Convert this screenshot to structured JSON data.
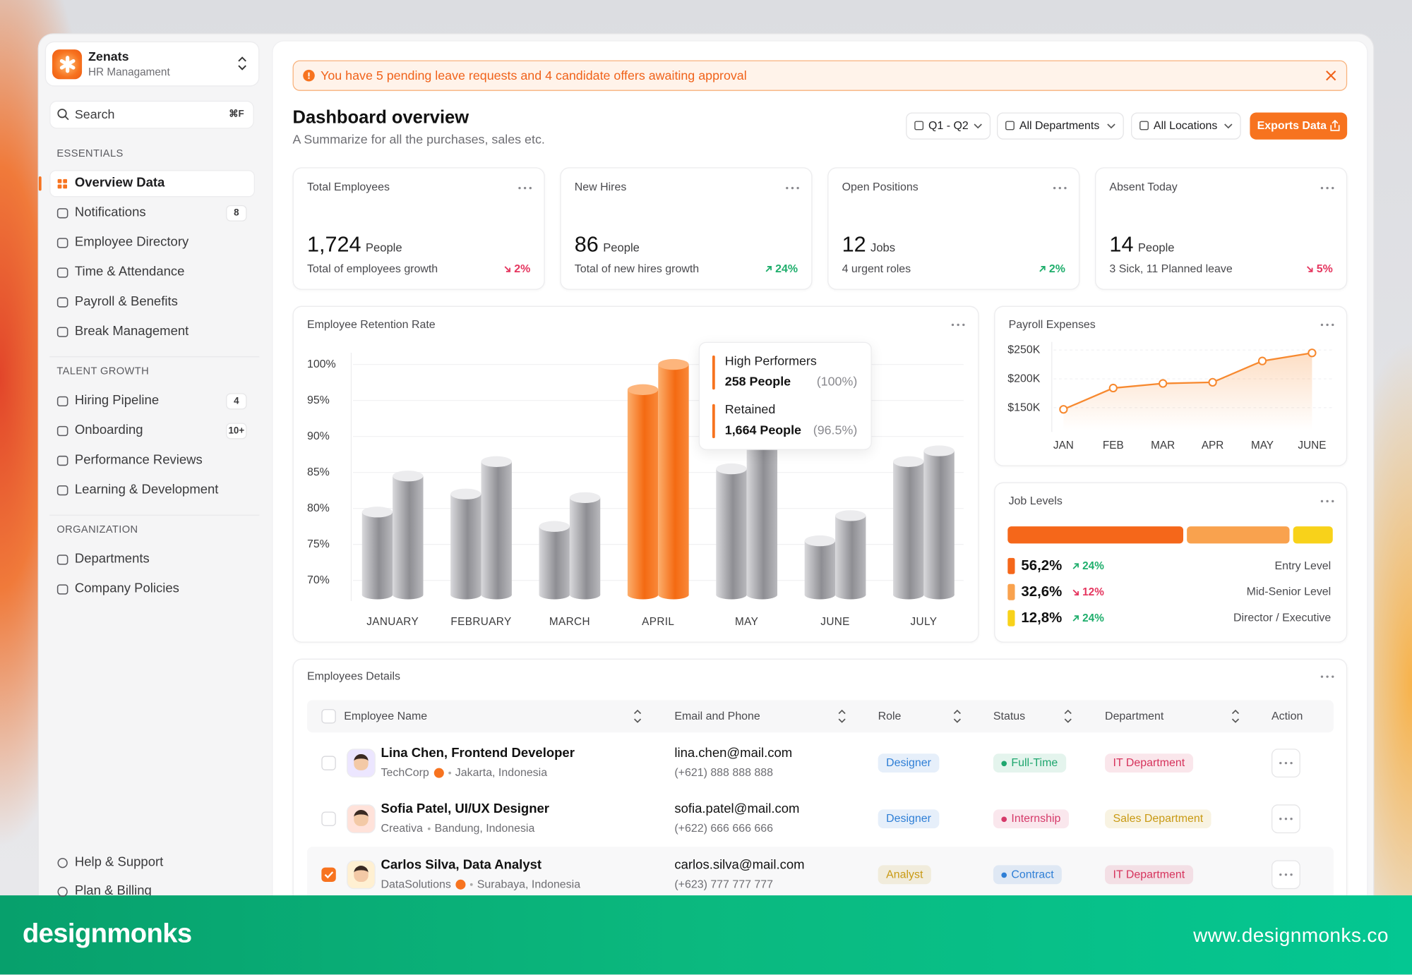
{
  "sidebar": {
    "brand": {
      "name": "Zenats",
      "subtitle": "HR Managament"
    },
    "search": {
      "placeholder": "Search",
      "shortcut": "⌘F"
    },
    "sections": [
      {
        "title": "ESSENTIALS",
        "items": [
          {
            "label": "Overview Data",
            "active": true
          },
          {
            "label": "Notifications",
            "badge": 8
          },
          {
            "label": "Employee Directory"
          },
          {
            "label": "Time & Attendance"
          },
          {
            "label": "Payroll & Benefits"
          },
          {
            "label": "Break Management"
          }
        ]
      },
      {
        "title": "TALENT GROWTH",
        "items": [
          {
            "label": "Hiring Pipeline",
            "badge": 4
          },
          {
            "label": "Onboarding",
            "badge": "10+"
          },
          {
            "label": "Performance Reviews"
          },
          {
            "label": "Learning & Development"
          }
        ]
      },
      {
        "title": "ORGANIZATION",
        "items": [
          {
            "label": "Departments"
          },
          {
            "label": "Company Policies"
          }
        ]
      }
    ],
    "footer": [
      {
        "label": "Help & Support"
      },
      {
        "label": "Plan & Billing"
      }
    ]
  },
  "banner": {
    "text": "You have 5 pending leave requests and 4 candidate offers awaiting approval"
  },
  "header": {
    "title": "Dashboard overview",
    "subtitle": "A Summarize for all the purchases, sales etc.",
    "filters": [
      "Q1 - Q2",
      "All Departments",
      "All Locations"
    ],
    "export": "Exports Data"
  },
  "stats": [
    {
      "label": "Total Employees",
      "value": "1,724",
      "unit": "People",
      "note": "Total of employees growth",
      "change": "2%",
      "direction": "down"
    },
    {
      "label": "New Hires",
      "value": 86,
      "unit": "People",
      "note": "Total of new hires growth",
      "change": "24%",
      "direction": "up"
    },
    {
      "label": "Open Positions",
      "value": 12,
      "unit": "Jobs",
      "note": "4 urgent roles",
      "change": "2%",
      "direction": "up"
    },
    {
      "label": "Absent Today",
      "value": 14,
      "unit": "People",
      "note": "3 Sick, 11 Planned leave",
      "change": "5%",
      "direction": "down"
    }
  ],
  "retention": {
    "type": "bar",
    "title": "Employee Retention Rate",
    "categories": [
      "JANUARY",
      "FEBRUARY",
      "MARCH",
      "APRIL",
      "MAY",
      "JUNE",
      "JULY"
    ],
    "series": [
      {
        "color": "#9b9ba0",
        "values": [
          79.5,
          82,
          77.5,
          96.5,
          85.5,
          75.5,
          86.5
        ]
      },
      {
        "color": "#9b9ba0",
        "values": [
          84.5,
          86.5,
          81.5,
          100,
          89,
          79,
          88
        ]
      }
    ],
    "highlight_index": 3,
    "highlight_color": "#f7731f",
    "ylim": [
      68,
      100
    ],
    "yticks": [
      {
        "value": 70,
        "label": "70%"
      },
      {
        "value": 75,
        "label": "75%"
      },
      {
        "value": 80,
        "label": "80%"
      },
      {
        "value": 85,
        "label": "85%"
      },
      {
        "value": 90,
        "label": "90%"
      },
      {
        "value": 95,
        "label": "95%"
      },
      {
        "value": 100,
        "label": "100%"
      }
    ],
    "grid": true,
    "tooltip": {
      "items": [
        {
          "label": "High Performers",
          "count": "258 People",
          "share": "(100%)"
        },
        {
          "label": "Retained",
          "count": "1,664 People",
          "share": "(96.5%)"
        }
      ]
    }
  },
  "payroll": {
    "type": "line",
    "title": "Payroll Expenses",
    "categories": [
      "JAN",
      "FEB",
      "MAR",
      "APR",
      "MAY",
      "JUNE"
    ],
    "values": [
      147000,
      184000,
      192000,
      194000,
      231000,
      245000
    ],
    "color": "#f7892f",
    "ylim": [
      110000,
      260000
    ],
    "yticks": [
      {
        "value": 150000,
        "label": "$150K"
      },
      {
        "value": 200000,
        "label": "$200K"
      },
      {
        "value": 250000,
        "label": "$250K"
      }
    ],
    "grid": true
  },
  "job_levels": {
    "type": "stacked-bar",
    "title": "Job Levels",
    "categories": [
      "Entry Level",
      "Mid-Senior Level",
      "Director / Executive"
    ],
    "values": [
      56.2,
      32.6,
      12.8
    ],
    "value_labels": [
      "56,2%",
      "32,6%",
      "12,8%"
    ],
    "colors": [
      "#f5671a",
      "#f9a24e",
      "#f8d21a"
    ],
    "changes": [
      {
        "text": "24%",
        "direction": "up"
      },
      {
        "text": "12%",
        "direction": "down"
      },
      {
        "text": "24%",
        "direction": "up"
      }
    ]
  },
  "table": {
    "title": "Employees Details",
    "columns": [
      "Employee Name",
      "Email and Phone",
      "Role",
      "Status",
      "Department",
      "Action"
    ],
    "rows": [
      {
        "name": "Lina Chen, Frontend Developer",
        "company": "TechCorp",
        "verified": true,
        "location": "Jakarta, Indonesia",
        "email": "lina.chen@mail.com",
        "phone": "(+621) 888 888 888",
        "role": {
          "text": "Designer",
          "color": "#2f7fd6"
        },
        "status": {
          "text": "Full-Time",
          "color": "#1ea66e"
        },
        "department": {
          "text": "IT Department",
          "color": "#d6335c"
        },
        "checked": false
      },
      {
        "name": "Sofia Patel, UI/UX Designer",
        "company": "Creativa",
        "verified": false,
        "location": "Bandung, Indonesia",
        "email": "sofia.patel@mail.com",
        "phone": "(+622) 666 666 666",
        "role": {
          "text": "Designer",
          "color": "#2f7fd6"
        },
        "status": {
          "text": "Internship",
          "color": "#d63a6a"
        },
        "department": {
          "text": "Sales Department",
          "color": "#c99a14"
        },
        "checked": false
      },
      {
        "name": "Carlos Silva, Data Analyst",
        "company": "DataSolutions",
        "verified": true,
        "location": "Surabaya, Indonesia",
        "email": "carlos.silva@mail.com",
        "phone": "(+623) 777 777 777",
        "role": {
          "text": "Analyst",
          "color": "#c99a14"
        },
        "status": {
          "text": "Contract",
          "color": "#2f7fd6"
        },
        "department": {
          "text": "IT Department",
          "color": "#d6335c"
        },
        "checked": true
      }
    ]
  },
  "footer": {
    "brand": "designmonks",
    "url": "www.designmonks.co"
  }
}
